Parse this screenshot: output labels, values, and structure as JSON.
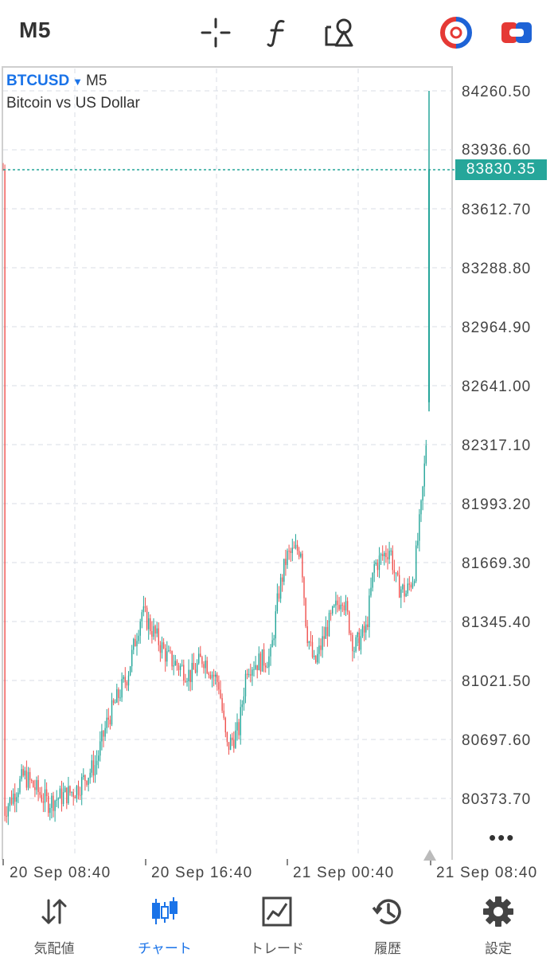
{
  "toolbar": {
    "timeframe": "M5",
    "icons": [
      "crosshair-icon",
      "function-icon",
      "objects-icon",
      "trade-toggle-icon",
      "one-click-trading-icon"
    ]
  },
  "chart": {
    "symbol": "BTCUSD",
    "timeframe": "M5",
    "description": "Bitcoin vs US Dollar",
    "current_price": "83830.35",
    "more": "•••",
    "colors": {
      "bull": "#26a69a",
      "bear": "#ef5350",
      "grid": "#d8dde6",
      "price_line": "#26a69a"
    },
    "y_labels": [
      "84260.50",
      "83936.60",
      "83612.70",
      "83288.80",
      "82964.90",
      "82641.00",
      "82317.10",
      "81993.20",
      "81669.30",
      "81345.40",
      "81021.50",
      "80697.60",
      "80373.70"
    ],
    "x_labels": [
      "20 Sep 08:40",
      "20 Sep 16:40",
      "21 Sep 00:40",
      "21 Sep 08:40"
    ]
  },
  "nav": {
    "items": [
      {
        "label": "気配値",
        "icon": "quotes-icon"
      },
      {
        "label": "チャート",
        "icon": "chart-candles-icon",
        "active": true
      },
      {
        "label": "トレード",
        "icon": "trade-icon"
      },
      {
        "label": "履歴",
        "icon": "history-icon"
      },
      {
        "label": "設定",
        "icon": "settings-icon"
      }
    ]
  }
}
